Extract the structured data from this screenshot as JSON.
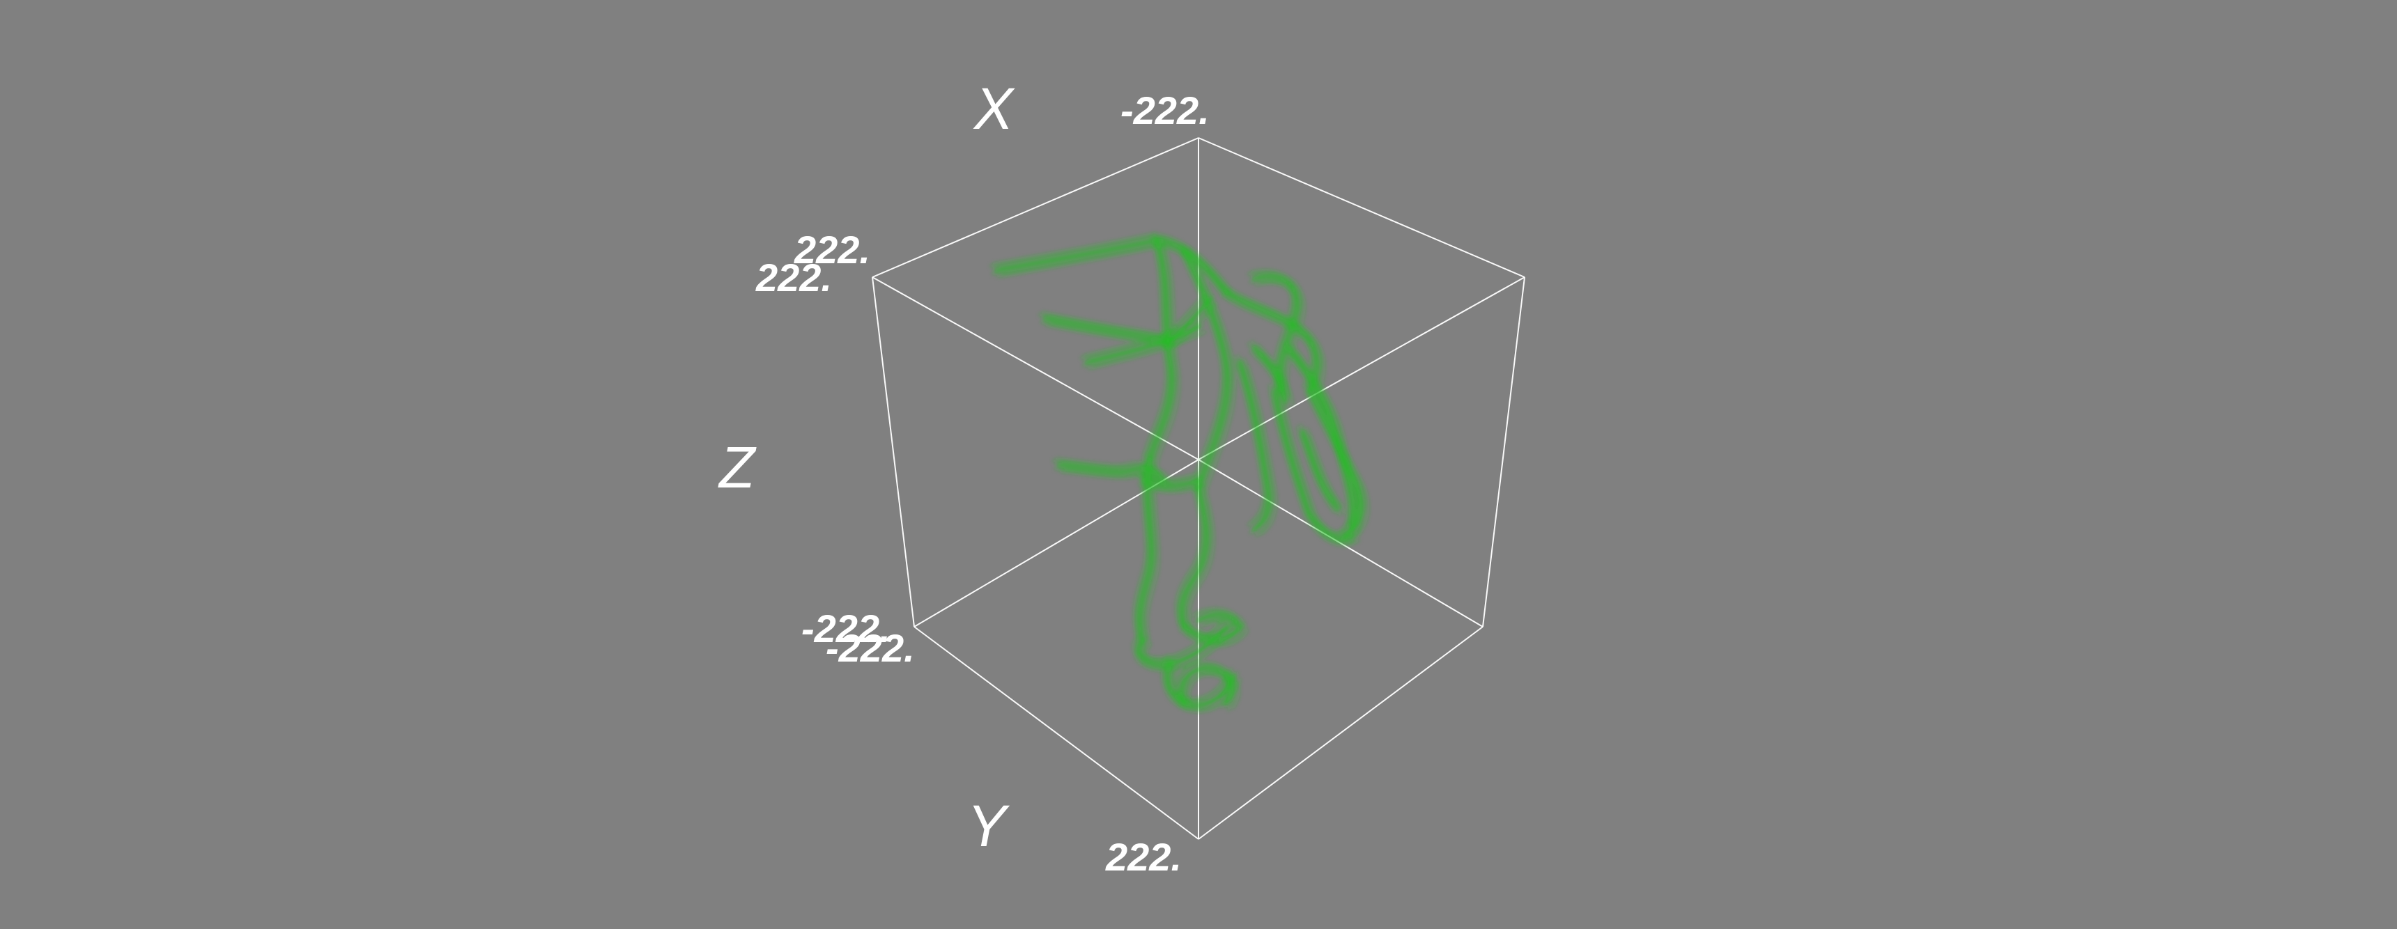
{
  "viewer": {
    "background_color": "#808080",
    "volume_color": "#22c022",
    "bounding_box_color": "#ffffff"
  },
  "axes": {
    "x": {
      "label": "X",
      "tick": "-222."
    },
    "y": {
      "label": "Y",
      "tick": "222."
    },
    "z": {
      "label": "Z",
      "tick_top_a": "222.",
      "tick_top_b": "222.",
      "tick_bottom_a": "-222.",
      "tick_bottom_b": "-222."
    }
  }
}
